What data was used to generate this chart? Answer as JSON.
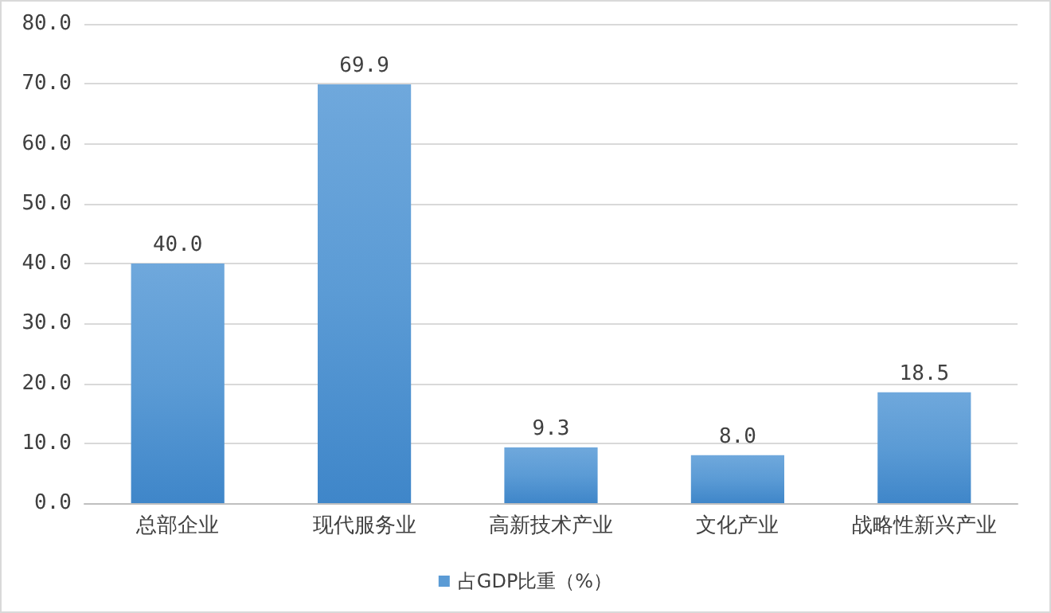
{
  "chart_data": {
    "type": "bar",
    "categories": [
      "总部企业",
      "现代服务业",
      "高新技术产业",
      "文化产业",
      "战略性新兴产业"
    ],
    "series": [
      {
        "name": "占GDP比重（%）",
        "color": "#5b9bd5",
        "values": [
          40.0,
          69.9,
          9.3,
          8.0,
          18.5
        ],
        "value_labels": [
          "40.0",
          "69.9",
          "9.3",
          "8.0",
          "18.5"
        ]
      }
    ],
    "ylim": [
      0,
      80
    ],
    "yticks": [
      {
        "value": 0,
        "label": "0.0"
      },
      {
        "value": 10,
        "label": "10.0"
      },
      {
        "value": 20,
        "label": "20.0"
      },
      {
        "value": 30,
        "label": "30.0"
      },
      {
        "value": 40,
        "label": "40.0"
      },
      {
        "value": 50,
        "label": "50.0"
      },
      {
        "value": 60,
        "label": "60.0"
      },
      {
        "value": 70,
        "label": "70.0"
      },
      {
        "value": 80,
        "label": "80.0"
      }
    ],
    "grid": "y",
    "legend": "bottom"
  }
}
